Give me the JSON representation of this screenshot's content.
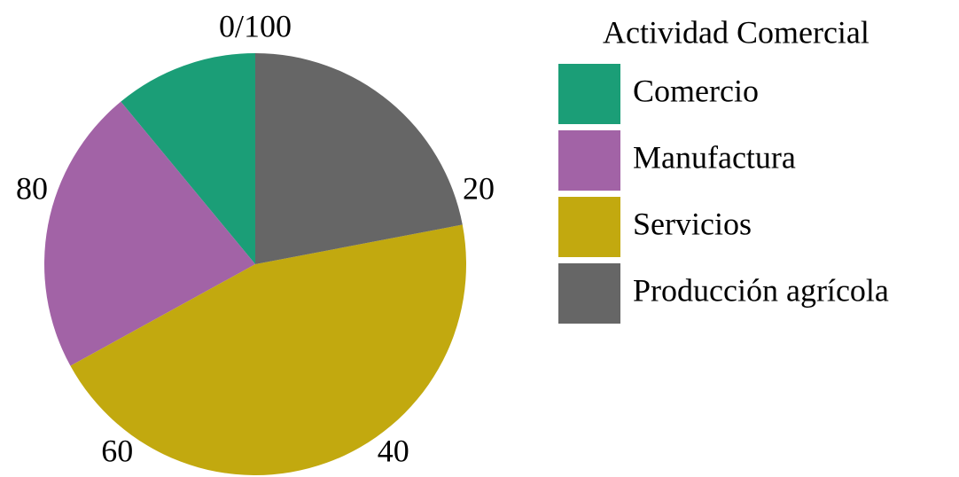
{
  "chart_data": {
    "type": "pie",
    "legend_title": "Actividad Comercial",
    "categories": [
      "Comercio",
      "Manufactura",
      "Servicios",
      "Producción agrícola"
    ],
    "values": [
      11,
      22,
      45,
      22
    ],
    "colors": [
      "#1b9e77",
      "#a263a6",
      "#c2a90f",
      "#666666"
    ],
    "angle_range": [
      0,
      100
    ],
    "angle_ticks": [
      {
        "value": 0,
        "label": "0/100"
      },
      20,
      40,
      60,
      80
    ]
  }
}
